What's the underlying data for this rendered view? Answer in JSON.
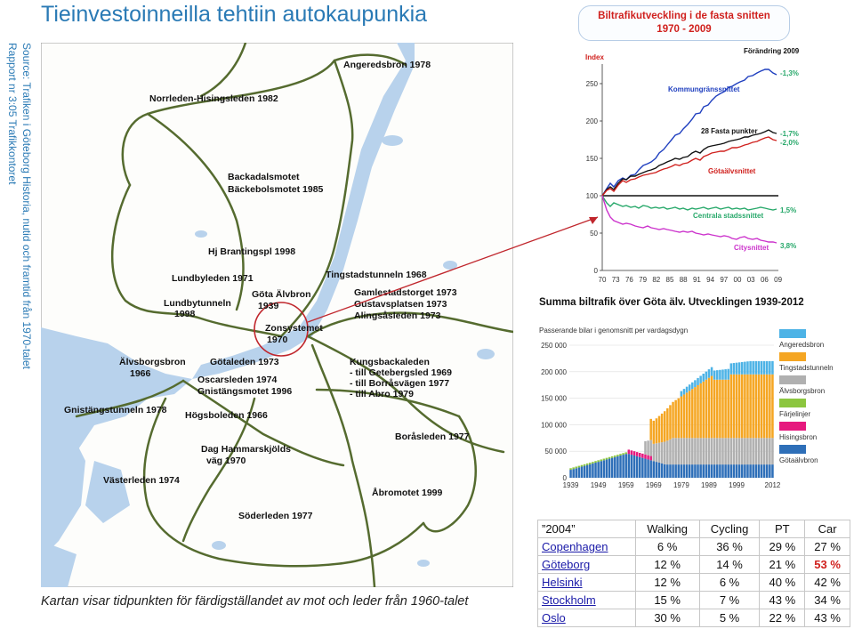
{
  "title": "Tieinvestoinneilla tehtiin autokaupunkia",
  "source": {
    "line1": "Source: Trafiken i Göteborg Historia, nutid och framtid från 1970-talet",
    "line2": "Rapport nr 3:05 Trafikkontoret"
  },
  "map": {
    "caption": "Kartan visar tidpunkten för färdigställandet av mot och leder från 1960-talet",
    "labels": [
      "Angeredsbron 1978",
      "Norrleden-Hisingsleden 1982",
      "Backadalsmotet",
      "Bäckebolsmotet 1985",
      "Hj Brantingspl 1998",
      "Lundbyleden 1971",
      "Tingstadstunneln 1968",
      "Lundbytunneln",
      "1998",
      "Göta Älvbron",
      "1939",
      "Gamlestadstorget 1973",
      "Gustavsplatsen 1973",
      "Alingsåsleden 1973",
      "Zonsystemet",
      "1970",
      "Älvsborgsbron",
      "1966",
      "Götaleden 1973",
      "Kungsbackaleden",
      "- till Getebergsled 1969",
      "- till Borråsvägen 1977",
      "- till Abro 1979",
      "Oscarsleden 1974",
      "Gnistängsmotet 1996",
      "Gnistängstunneln 1978",
      "Högsboleden 1966",
      "Boråsleden 1977",
      "Dag Hammarskjölds",
      "väg 1970",
      "Västerleden 1974",
      "Åbromotet 1999",
      "Söderleden 1977"
    ]
  },
  "chart1": {
    "title_line1": "Biltrafikutveckling i de fasta snitten",
    "title_line2": "1970 - 2009",
    "ylabel": "Index",
    "change_label": "Förändring 2009",
    "yticks": [
      "0",
      "50",
      "100",
      "150",
      "200",
      "250"
    ],
    "xticks": [
      "70",
      "73",
      "76",
      "79",
      "82",
      "85",
      "88",
      "91",
      "94",
      "97",
      "00",
      "03",
      "06",
      "09"
    ],
    "series_labels": [
      "Kommungränssnittet",
      "28 Fasta punkter",
      "Götaälvsnittet",
      "Centrala stadssnittet",
      "Citysnittet"
    ],
    "changes": [
      "-1,3%",
      "-1,7%",
      "-2,0%",
      "1,5%",
      "3,8%"
    ],
    "colors": {
      "kommun": "#1f3fbf",
      "fasta": "#111111",
      "gota": "#d0211e",
      "central": "#27a86a",
      "city": "#cc33cc"
    }
  },
  "chart2": {
    "title": "Summa biltrafik över Göta älv. Utvecklingen 1939-2012",
    "subtitle": "Passerande bilar i genomsnitt per vardagsdygn",
    "yticks": [
      "0",
      "50 000",
      "100 000",
      "150 000",
      "200 000",
      "250 000"
    ],
    "xticks": [
      "1939",
      "1949",
      "1959",
      "1969",
      "1979",
      "1989",
      "1999",
      "2012"
    ],
    "legend": [
      {
        "label": "Angeredsbron",
        "color": "#4db3e6"
      },
      {
        "label": "Tingstadstunneln",
        "color": "#f5a623"
      },
      {
        "label": "Älvsborgsbron",
        "color": "#b0b0b0"
      },
      {
        "label": "Färjelinjer",
        "color": "#8cc63f"
      },
      {
        "label": "Hisingsbron",
        "color": "#e6197e"
      },
      {
        "label": "Götaälvbron",
        "color": "#2e6fb8"
      }
    ]
  },
  "modal_table": {
    "header": [
      "”2004”",
      "Walking",
      "Cycling",
      "PT",
      "Car"
    ],
    "rows": [
      {
        "city": "Copenhagen",
        "walking": "6 %",
        "cycling": "36 %",
        "pt": "29 %",
        "car": "27 %"
      },
      {
        "city": "Göteborg",
        "walking": "12 %",
        "cycling": "14 %",
        "pt": "21 %",
        "car": "53 %"
      },
      {
        "city": "Helsinki",
        "walking": "12 %",
        "cycling": "6 %",
        "pt": "40 %",
        "car": "42 %"
      },
      {
        "city": "Stockholm",
        "walking": "15 %",
        "cycling": "7 %",
        "pt": "43 %",
        "car": "34 %"
      },
      {
        "city": "Oslo",
        "walking": "30 %",
        "cycling": "5 %",
        "pt": "22 %",
        "car": "43 %"
      }
    ]
  }
}
